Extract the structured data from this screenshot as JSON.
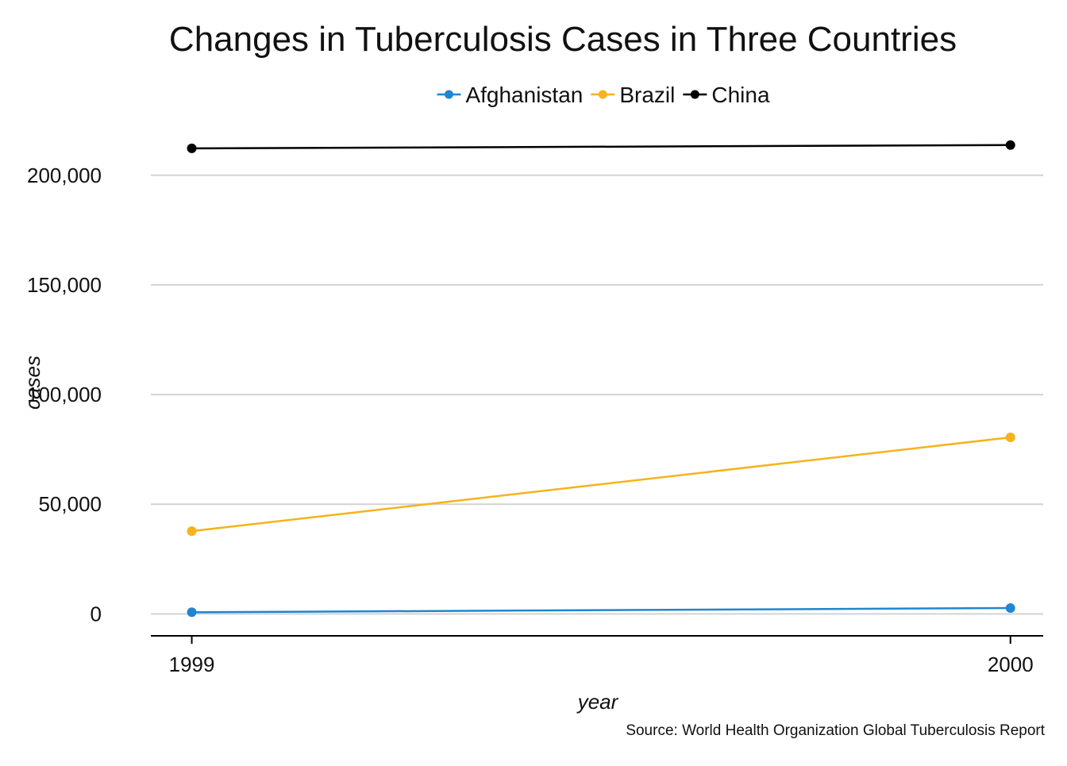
{
  "chart_data": {
    "type": "line",
    "title": "Changes in Tuberculosis Cases in Three Countries",
    "xlabel": "year",
    "ylabel": "cases",
    "caption": "Source: World Health Organization Global Tuberculosis Report",
    "x": [
      1999,
      2000
    ],
    "x_tick_labels": [
      "1999",
      "2000"
    ],
    "y_ticks": [
      0,
      50000,
      100000,
      150000,
      200000
    ],
    "y_tick_labels": [
      "0",
      "50,000",
      "100,000",
      "150,000",
      "200,000"
    ],
    "ylim": [
      -10000,
      222000
    ],
    "xlim": [
      1998.95,
      2000.04
    ],
    "grid": "horizontal",
    "legend_position": "top",
    "series": [
      {
        "name": "Afghanistan",
        "color": "#1f86d0",
        "values": [
          745,
          2666
        ]
      },
      {
        "name": "Brazil",
        "color": "#f5b31c",
        "values": [
          37737,
          80488
        ]
      },
      {
        "name": "China",
        "color": "#000000",
        "values": [
          212258,
          213766
        ]
      }
    ]
  }
}
